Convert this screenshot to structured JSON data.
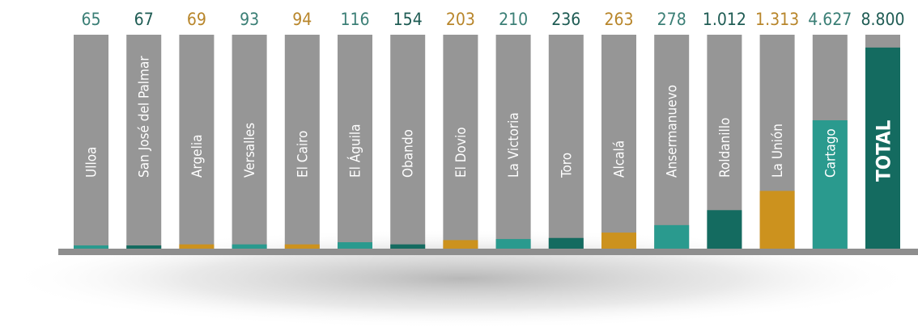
{
  "chart_data": {
    "type": "bar",
    "categories": [
      "Ulloa",
      "San José del Palmar",
      "Argelia",
      "Versalles",
      "El Cairo",
      "El Águila",
      "Obando",
      "El Dovio",
      "La Victoria",
      "Toro",
      "Alcalá",
      "Ansermanuevo",
      "Roldanillo",
      "La Unión",
      "Cartago",
      "TOTAL"
    ],
    "values": [
      65,
      67,
      69,
      93,
      94,
      116,
      154,
      203,
      210,
      236,
      263,
      278,
      1012,
      1313,
      4627,
      8800
    ],
    "value_labels": [
      "65",
      "67",
      "69",
      "93",
      "94",
      "116",
      "154",
      "203",
      "210",
      "236",
      "263",
      "278",
      "1.012",
      "1.313",
      "4.627",
      "8.800"
    ],
    "fill_fractions": [
      0.01,
      0.01,
      0.02,
      0.02,
      0.02,
      0.03,
      0.02,
      0.04,
      0.045,
      0.05,
      0.075,
      0.11,
      0.18,
      0.27,
      0.6,
      0.94
    ],
    "colors": [
      "#2a9a8e",
      "#146b60",
      "#cc921e",
      "#2a9a8e",
      "#cc921e",
      "#2a9a8e",
      "#146b60",
      "#cc921e",
      "#2a9a8e",
      "#146b60",
      "#cc921e",
      "#2a9a8e",
      "#146b60",
      "#cc921e",
      "#2a9a8e",
      "#146b60"
    ],
    "label_colors": [
      "#3b7f76",
      "#1f5c54",
      "#b8862b",
      "#3b7f76",
      "#b8862b",
      "#3b7f76",
      "#1f5c54",
      "#b8862b",
      "#3b7f76",
      "#1f5c54",
      "#b8862b",
      "#3b7f76",
      "#1f5c54",
      "#b8862b",
      "#3b7f76",
      "#1f5c54"
    ],
    "background_bar_color": "#969696",
    "baseline_color": "#8e8e8e",
    "title": "",
    "xlabel": "",
    "ylabel": "",
    "legend": "none",
    "grid": false
  }
}
